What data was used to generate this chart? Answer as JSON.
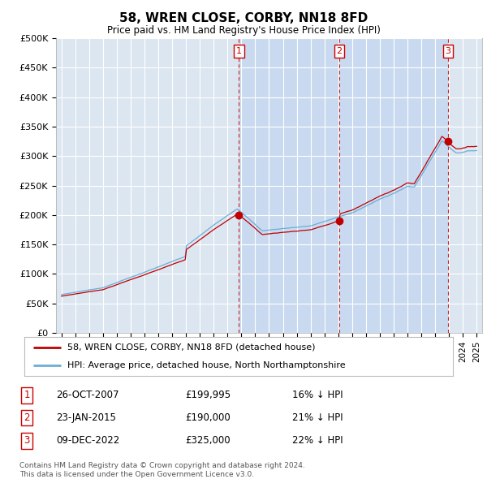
{
  "title": "58, WREN CLOSE, CORBY, NN18 8FD",
  "subtitle": "Price paid vs. HM Land Registry's House Price Index (HPI)",
  "ylabel_ticks": [
    "£0",
    "£50K",
    "£100K",
    "£150K",
    "£200K",
    "£250K",
    "£300K",
    "£350K",
    "£400K",
    "£450K",
    "£500K"
  ],
  "ytick_values": [
    0,
    50000,
    100000,
    150000,
    200000,
    250000,
    300000,
    350000,
    400000,
    450000,
    500000
  ],
  "xlim_left": 1994.6,
  "xlim_right": 2025.4,
  "ylim": [
    0,
    500000
  ],
  "legend_line1": "58, WREN CLOSE, CORBY, NN18 8FD (detached house)",
  "legend_line2": "HPI: Average price, detached house, North Northamptonshire",
  "sale1_date": "26-OCT-2007",
  "sale1_price": "£199,995",
  "sale1_hpi": "16% ↓ HPI",
  "sale1_year": 2007.82,
  "sale1_value": 199995,
  "sale2_date": "23-JAN-2015",
  "sale2_price": "£190,000",
  "sale2_hpi": "21% ↓ HPI",
  "sale2_year": 2015.07,
  "sale2_value": 190000,
  "sale3_date": "09-DEC-2022",
  "sale3_price": "£325,000",
  "sale3_hpi": "22% ↓ HPI",
  "sale3_year": 2022.94,
  "sale3_value": 325000,
  "copyright": "Contains HM Land Registry data © Crown copyright and database right 2024.\nThis data is licensed under the Open Government Licence v3.0.",
  "hpi_color": "#6baed6",
  "sale_color": "#c00000",
  "bg_color": "#dce6f1",
  "shade_color": "#c6d9f0",
  "plot_bg": "#ffffff",
  "vline_color": "#cc0000",
  "grid_color": "#ffffff",
  "label_color": "#cc0000"
}
